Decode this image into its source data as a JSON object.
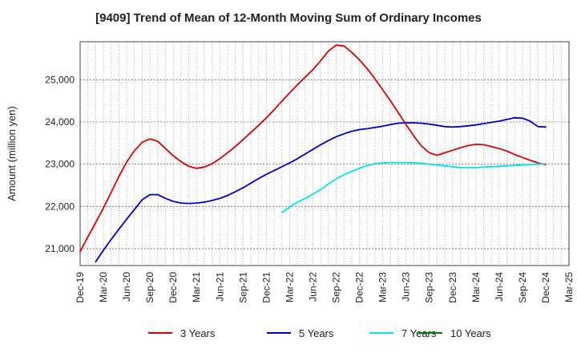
{
  "chart_data": {
    "type": "line",
    "title": "[9409]  Trend of Mean of 12-Month Moving Sum of Ordinary Incomes",
    "xlabel": "",
    "ylabel": "Amount (million yen)",
    "ylim": [
      20600,
      25900
    ],
    "yticks": [
      21000,
      22000,
      23000,
      24000,
      25000
    ],
    "ytick_labels": [
      "21,000",
      "22,000",
      "23,000",
      "24,000",
      "25,000"
    ],
    "xlim": [
      0,
      63
    ],
    "xticks": [
      0,
      3,
      6,
      9,
      12,
      15,
      18,
      21,
      24,
      27,
      30,
      33,
      36,
      39,
      42,
      45,
      48,
      51,
      54,
      57,
      60,
      63
    ],
    "xtick_labels": [
      "Dec-19",
      "Mar-20",
      "Jun-20",
      "Sep-20",
      "Dec-20",
      "Mar-21",
      "Jun-21",
      "Sep-21",
      "Dec-21",
      "Mar-22",
      "Jun-22",
      "Sep-22",
      "Dec-22",
      "Mar-23",
      "Jun-23",
      "Sep-23",
      "Dec-23",
      "Mar-24",
      "Jun-24",
      "Sep-24",
      "Dec-24",
      "Mar-25"
    ],
    "grid": true,
    "legend_position": "bottom",
    "series": [
      {
        "name": "3 Years",
        "color": "#dd0000",
        "x": [
          0,
          1,
          2,
          3,
          4,
          5,
          6,
          7,
          8,
          9,
          10,
          11,
          12,
          13,
          14,
          15,
          16,
          17,
          18,
          19,
          20,
          21,
          22,
          23,
          24,
          25,
          26,
          27,
          28,
          29,
          30,
          31,
          32,
          33,
          34,
          35,
          36,
          37,
          38,
          39,
          40,
          41,
          42,
          43,
          44,
          45,
          46,
          47,
          48,
          49,
          50,
          51,
          52,
          53,
          54,
          55,
          56,
          57,
          58,
          59,
          60
        ],
        "values": [
          20930,
          21280,
          21620,
          21960,
          22330,
          22710,
          23050,
          23320,
          23520,
          23600,
          23540,
          23370,
          23200,
          23060,
          22950,
          22900,
          22930,
          23010,
          23130,
          23270,
          23420,
          23580,
          23750,
          23920,
          24100,
          24290,
          24490,
          24690,
          24880,
          25060,
          25240,
          25450,
          25680,
          25820,
          25800,
          25650,
          25470,
          25260,
          25020,
          24760,
          24500,
          24220,
          23940,
          23670,
          23430,
          23270,
          23210,
          23270,
          23330,
          23390,
          23440,
          23470,
          23460,
          23420,
          23370,
          23310,
          23230,
          23160,
          23090,
          23030,
          22990
        ]
      },
      {
        "name": "5 Years",
        "color": "#0000cc",
        "x": [
          2,
          3,
          4,
          5,
          6,
          7,
          8,
          9,
          10,
          11,
          12,
          13,
          14,
          15,
          16,
          17,
          18,
          19,
          20,
          21,
          22,
          23,
          24,
          25,
          26,
          27,
          28,
          29,
          30,
          31,
          32,
          33,
          34,
          35,
          36,
          37,
          38,
          39,
          40,
          41,
          42,
          43,
          44,
          45,
          46,
          47,
          48,
          49,
          50,
          51,
          52,
          53,
          54,
          55,
          56,
          57,
          58,
          59,
          60
        ],
        "values": [
          20690,
          20960,
          21220,
          21460,
          21700,
          21930,
          22160,
          22280,
          22280,
          22190,
          22120,
          22080,
          22070,
          22080,
          22100,
          22140,
          22190,
          22260,
          22350,
          22440,
          22550,
          22660,
          22760,
          22850,
          22940,
          23030,
          23130,
          23240,
          23350,
          23460,
          23560,
          23650,
          23720,
          23780,
          23820,
          23840,
          23870,
          23900,
          23940,
          23970,
          23980,
          23980,
          23970,
          23950,
          23920,
          23890,
          23880,
          23890,
          23910,
          23930,
          23960,
          23990,
          24020,
          24060,
          24100,
          24090,
          24020,
          23890,
          23880
        ]
      },
      {
        "name": "7 Years",
        "color": "#00e5e5",
        "x": [
          26,
          27,
          28,
          29,
          30,
          31,
          32,
          33,
          34,
          35,
          36,
          37,
          38,
          39,
          40,
          41,
          42,
          43,
          44,
          45,
          46,
          47,
          48,
          49,
          50,
          51,
          52,
          53,
          54,
          55,
          56,
          57,
          58,
          59,
          60
        ],
        "values": [
          21860,
          21980,
          22100,
          22190,
          22290,
          22400,
          22530,
          22650,
          22750,
          22830,
          22900,
          22970,
          23010,
          23030,
          23040,
          23040,
          23040,
          23030,
          23020,
          23000,
          22980,
          22960,
          22940,
          22920,
          22920,
          22920,
          22930,
          22940,
          22950,
          22960,
          22970,
          22980,
          22990,
          23000,
          23010
        ]
      },
      {
        "name": "10 Years",
        "color": "#008000",
        "x": [],
        "values": []
      }
    ]
  }
}
